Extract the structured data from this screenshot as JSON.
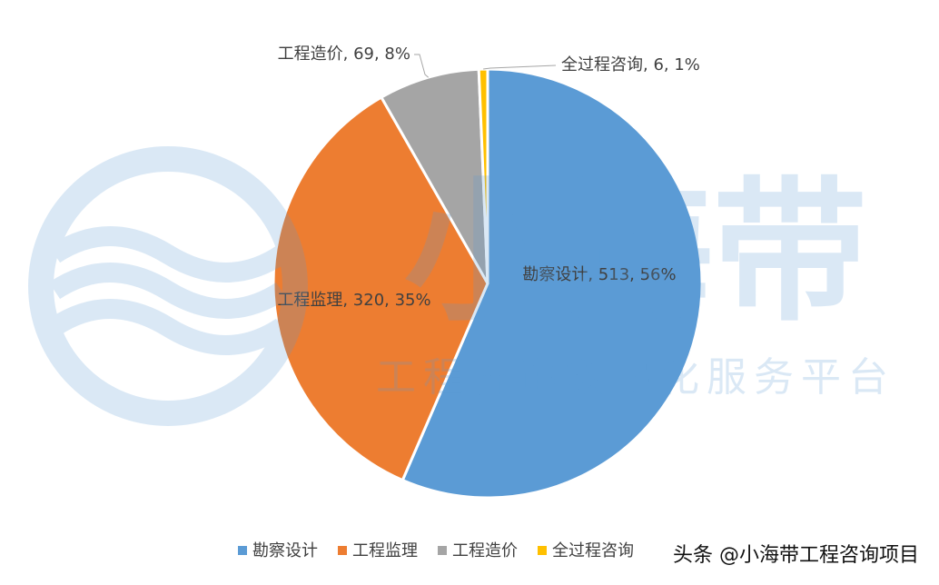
{
  "chart_data": {
    "type": "pie",
    "categories": [
      "勘察设计",
      "工程监理",
      "工程造价",
      "全过程咨询"
    ],
    "values": [
      513,
      320,
      69,
      6
    ],
    "value_labels": [
      "勘察设计, 513, 56%",
      "工程监理, 320, 35%",
      "工程造价, 69, 8%",
      "全过程咨询, 6, 1%"
    ],
    "colors": [
      "#5b9bd5",
      "#ed7d31",
      "#a5a5a5",
      "#ffc000"
    ],
    "legend": "bottom"
  },
  "watermark": {
    "logo": "小海带",
    "slogan": "工程咨询数字化服务平台",
    "source": "头条 @小海带工程咨询项目"
  }
}
